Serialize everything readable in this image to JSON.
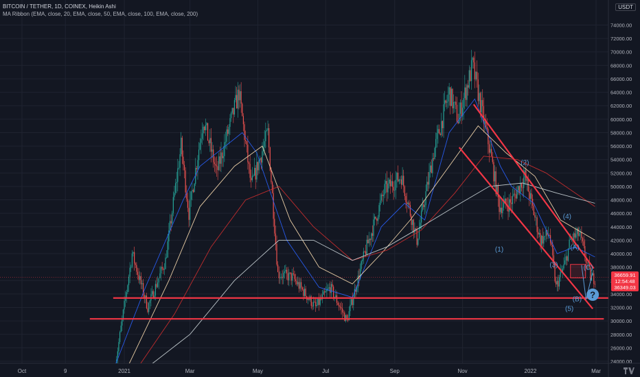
{
  "header": {
    "title": "BITCOIN / TETHER, 1D, COINEX, Heikin Ashi",
    "indicator": "MA Ribbon (EMA, close, 20, EMA, close, 50, EMA, close, 100, EMA, close, 200)",
    "currency": "USDT"
  },
  "price_tag": {
    "line1": "36659.91",
    "line2": "12:54:48",
    "line3": "36349.03"
  },
  "colors": {
    "background": "#131722",
    "grid": "#1f2330",
    "up": "#26a69a",
    "down": "#ef5350",
    "ema20": "#2962ff",
    "ema50": "#ffe0b2",
    "ema100": "#d32f2f",
    "ema200": "#cfd8dc",
    "annotation": "#f23645",
    "wave_label": "#5b9bd5"
  },
  "chart_data": {
    "type": "candlestick",
    "title": "BITCOIN / TETHER, 1D, COINEX, Heikin Ashi",
    "x_ticks": [
      "Oct",
      "9",
      "2021",
      "Mar",
      "May",
      "Jul",
      "Sep",
      "Nov",
      "2022",
      "Mar"
    ],
    "y_ticks": [
      24000,
      26000,
      28000,
      30000,
      32000,
      34000,
      36000,
      38000,
      40000,
      42000,
      44000,
      46000,
      48000,
      50000,
      52000,
      54000,
      56000,
      58000,
      60000,
      62000,
      64000,
      66000,
      68000,
      70000,
      72000,
      74000
    ],
    "y_tick_labels": [
      "24000.00",
      "26000.00",
      "28000.00",
      "30000.00",
      "32000.00",
      "34000.00",
      "36000.00",
      "38000.00",
      "40000.00",
      "42000.00",
      "44000.00",
      "46000.00",
      "48000.00",
      "50000.00",
      "52000.00",
      "54000.00",
      "56000.00",
      "58000.00",
      "60000.00",
      "62000.00",
      "64000.00",
      "66000.00",
      "68000.00",
      "70000.00",
      "72000.00",
      "74000.00"
    ],
    "ylim": [
      23000,
      77000
    ],
    "x_domain": [
      "2020-10",
      "2022-03"
    ],
    "price_path": [
      [
        "2020-12-24",
        23500
      ],
      [
        "2021-01-08",
        40000
      ],
      [
        "2021-01-22",
        32000
      ],
      [
        "2021-02-07",
        39000
      ],
      [
        "2021-02-21",
        56000
      ],
      [
        "2021-02-28",
        46000
      ],
      [
        "2021-03-13",
        60000
      ],
      [
        "2021-03-25",
        52000
      ],
      [
        "2021-04-14",
        64000
      ],
      [
        "2021-04-25",
        50000
      ],
      [
        "2021-05-10",
        58000
      ],
      [
        "2021-05-19",
        37000
      ],
      [
        "2021-06-01",
        36500
      ],
      [
        "2021-06-22",
        32000
      ],
      [
        "2021-07-05",
        35000
      ],
      [
        "2021-07-20",
        30000
      ],
      [
        "2021-08-05",
        40000
      ],
      [
        "2021-08-23",
        49500
      ],
      [
        "2021-09-07",
        51500
      ],
      [
        "2021-09-21",
        42000
      ],
      [
        "2021-10-06",
        55000
      ],
      [
        "2021-10-20",
        64000
      ],
      [
        "2021-10-28",
        60000
      ],
      [
        "2021-11-10",
        68000
      ],
      [
        "2021-11-26",
        55000
      ],
      [
        "2021-12-04",
        47000
      ],
      [
        "2021-12-14",
        47500
      ],
      [
        "2021-12-27",
        51500
      ],
      [
        "2022-01-10",
        42000
      ],
      [
        "2022-01-18",
        43000
      ],
      [
        "2022-01-24",
        35000
      ],
      [
        "2022-02-01",
        38500
      ],
      [
        "2022-02-06",
        42000
      ],
      [
        "2022-02-14",
        43000
      ],
      [
        "2022-02-24",
        36500
      ],
      [
        "2022-02-28",
        36300
      ]
    ],
    "ema_levels": [
      {
        "name": "EMA 20",
        "points": [
          [
            "2020-12-24",
            23500
          ],
          [
            "2021-01-20",
            35000
          ],
          [
            "2021-02-23",
            48000
          ],
          [
            "2021-03-10",
            53000
          ],
          [
            "2021-04-17",
            58000
          ],
          [
            "2021-04-30",
            55000
          ],
          [
            "2021-05-27",
            42000
          ],
          [
            "2021-06-25",
            35000
          ],
          [
            "2021-07-25",
            33500
          ],
          [
            "2021-08-20",
            44000
          ],
          [
            "2021-09-10",
            47500
          ],
          [
            "2021-09-28",
            45000
          ],
          [
            "2021-10-20",
            58000
          ],
          [
            "2021-11-12",
            63000
          ],
          [
            "2021-12-05",
            53000
          ],
          [
            "2021-12-15",
            50000
          ],
          [
            "2022-01-04",
            47500
          ],
          [
            "2022-01-25",
            40000
          ],
          [
            "2022-02-10",
            41000
          ],
          [
            "2022-02-28",
            39500
          ]
        ]
      },
      {
        "name": "EMA 50",
        "points": [
          [
            "2021-01-05",
            23500
          ],
          [
            "2021-02-10",
            36000
          ],
          [
            "2021-03-10",
            47000
          ],
          [
            "2021-04-10",
            53000
          ],
          [
            "2021-05-05",
            56000
          ],
          [
            "2021-05-30",
            45000
          ],
          [
            "2021-06-25",
            38000
          ],
          [
            "2021-07-25",
            35500
          ],
          [
            "2021-08-20",
            40000
          ],
          [
            "2021-09-15",
            45000
          ],
          [
            "2021-10-20",
            53000
          ],
          [
            "2021-11-15",
            59000
          ],
          [
            "2021-12-10",
            55000
          ],
          [
            "2022-01-05",
            51500
          ],
          [
            "2022-01-28",
            45000
          ],
          [
            "2022-02-28",
            42000
          ]
        ]
      },
      {
        "name": "EMA 100",
        "points": [
          [
            "2021-01-15",
            23500
          ],
          [
            "2021-02-15",
            31000
          ],
          [
            "2021-03-20",
            41000
          ],
          [
            "2021-04-20",
            48000
          ],
          [
            "2021-05-20",
            50000
          ],
          [
            "2021-06-20",
            44000
          ],
          [
            "2021-07-25",
            39000
          ],
          [
            "2021-08-25",
            40500
          ],
          [
            "2021-09-25",
            43500
          ],
          [
            "2021-10-25",
            49000
          ],
          [
            "2021-11-20",
            54500
          ],
          [
            "2021-12-20",
            54000
          ],
          [
            "2022-01-15",
            52000
          ],
          [
            "2022-02-28",
            47000
          ]
        ]
      },
      {
        "name": "EMA 200",
        "points": [
          [
            "2021-01-25",
            23500
          ],
          [
            "2021-03-01",
            28000
          ],
          [
            "2021-04-10",
            36000
          ],
          [
            "2021-05-20",
            42000
          ],
          [
            "2021-06-20",
            42000
          ],
          [
            "2021-07-25",
            39000
          ],
          [
            "2021-08-25",
            41000
          ],
          [
            "2021-09-25",
            44000
          ],
          [
            "2021-10-25",
            47000
          ],
          [
            "2021-11-25",
            50000
          ],
          [
            "2021-12-25",
            50500
          ],
          [
            "2022-01-25",
            49000
          ],
          [
            "2022-02-28",
            47500
          ]
        ]
      }
    ],
    "annotations": {
      "horizontal_lines": [
        {
          "from": "2020-12-22",
          "to": "2022-03-12",
          "price": 33400
        },
        {
          "from": "2020-12-01",
          "to": "2022-03-08",
          "price": 30300
        }
      ],
      "trend_lines": [
        {
          "from": [
            "2021-11-11",
            62200
          ],
          "to": [
            "2022-02-27",
            37800
          ]
        },
        {
          "from": [
            "2021-10-29",
            55800
          ],
          "to": [
            "2022-02-26",
            31800
          ]
        }
      ],
      "wave_labels": [
        {
          "text": "(1)",
          "date": "2021-12-04",
          "price": 40300
        },
        {
          "text": "(2)",
          "date": "2021-12-27",
          "price": 53200
        },
        {
          "text": "(3)",
          "date": "2022-01-22",
          "price": 38000
        },
        {
          "text": "(4)",
          "date": "2022-02-03",
          "price": 45200
        },
        {
          "text": "(5)",
          "date": "2022-02-05",
          "price": 31500
        },
        {
          "text": "(A)",
          "date": "2022-02-10",
          "price": 40600
        },
        {
          "text": "(B)",
          "date": "2022-02-12",
          "price": 32900
        },
        {
          "text": "(C)",
          "date": "2022-02-22",
          "price": 37600
        }
      ],
      "question_mark": {
        "text": "?",
        "date": "2022-02-26",
        "price": 33900
      }
    }
  }
}
